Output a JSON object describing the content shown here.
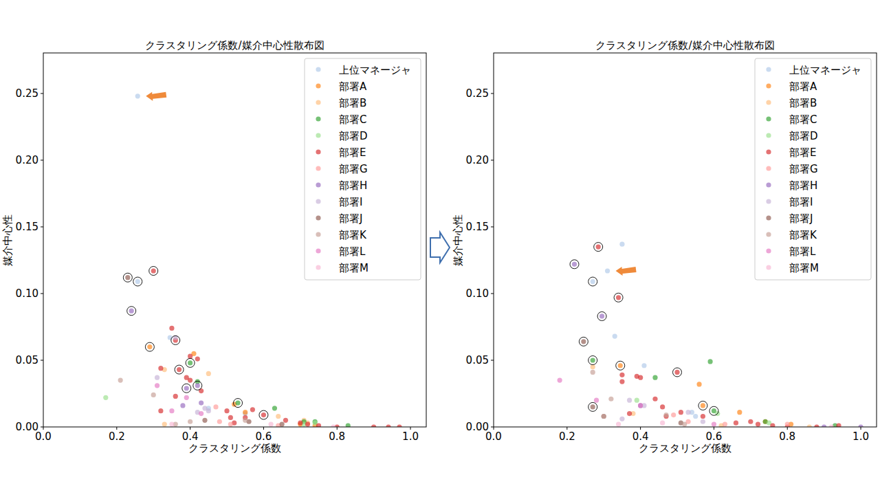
{
  "chart_data": [
    {
      "type": "scatter",
      "title": "クラスタリング係数/媒介中心性散布図",
      "x_label": "クラスタリング係数",
      "y_label": "媒介中心性",
      "xlim": [
        0,
        1.043
      ],
      "ylim": [
        0,
        0.2804
      ],
      "xticks": [
        {
          "value": 0,
          "label": "0.0"
        },
        {
          "value": 0.2,
          "label": "0.2"
        },
        {
          "value": 0.4,
          "label": "0.4"
        },
        {
          "value": 0.6,
          "label": "0.6"
        },
        {
          "value": 0.8,
          "label": "0.8"
        },
        {
          "value": 1,
          "label": "1.0"
        }
      ],
      "yticks": [
        {
          "value": 0,
          "label": "0.00"
        },
        {
          "value": 0.05,
          "label": "0.05"
        },
        {
          "value": 0.1,
          "label": "0.10"
        },
        {
          "value": 0.15,
          "label": "0.15"
        },
        {
          "value": 0.2,
          "label": "0.20"
        },
        {
          "value": 0.25,
          "label": "0.25"
        }
      ],
      "legend": "upper right",
      "series": [
        {
          "name": "上位マネージャ",
          "color": "#aec7e8",
          "marker": "circle",
          "x": [
            0.257,
            0.257,
            0.345,
            0.45,
            0.55
          ],
          "values": [
            0.248,
            0.109,
            0.067,
            0.014,
            0.01
          ]
        },
        {
          "name": "部署A",
          "color": "#ff7f0e",
          "marker": "circle",
          "x": [
            0.29,
            0.41,
            0.52,
            0.55,
            0.7,
            0.74
          ],
          "values": [
            0.06,
            0.055,
            0.017,
            0.011,
            0.002,
            0.001
          ]
        },
        {
          "name": "部署B",
          "color": "#ffbb78",
          "marker": "circle",
          "x": [
            0.33,
            0.45,
            0.64,
            0.72,
            0.33,
            0.71
          ],
          "values": [
            0.043,
            0.04,
            0.008,
            0.003,
            0.002,
            0.005
          ]
        },
        {
          "name": "部署C",
          "color": "#2ca02c",
          "marker": "circle",
          "x": [
            0.4,
            0.42,
            0.53,
            0.63,
            0.74,
            0.83,
            0.71
          ],
          "values": [
            0.048,
            0.034,
            0.018,
            0.014,
            0.004,
            0.001,
            0.004
          ]
        },
        {
          "name": "部署D",
          "color": "#98df8a",
          "marker": "circle",
          "x": [
            0.17,
            0.74,
            0.71
          ],
          "values": [
            0.022,
            0.003,
            0.002
          ]
        },
        {
          "name": "部署E",
          "color": "#d62728",
          "marker": "circle",
          "x": [
            0.3,
            0.35,
            0.36,
            0.37,
            0.39,
            0.4,
            0.42,
            0.4,
            0.43,
            0.32,
            0.32,
            0.36,
            0.5,
            0.51,
            0.55,
            0.57,
            0.6,
            0.66,
            0.7,
            0.72,
            0.75,
            0.8,
            0.9,
            0.94,
            0.97,
            0.52
          ],
          "values": [
            0.117,
            0.074,
            0.065,
            0.043,
            0.037,
            0.053,
            0.051,
            0.035,
            0.027,
            0.044,
            0.012,
            0.023,
            0.012,
            0.007,
            0.007,
            0.013,
            0.009,
            0.005,
            0.003,
            0.002,
            0.001,
            0,
            0,
            0,
            0,
            0.003
          ]
        },
        {
          "name": "部署G",
          "color": "#ff9896",
          "marker": "circle",
          "x": [
            0.47,
            0.51,
            0.64,
            0.48
          ],
          "values": [
            0.015,
            0.002,
            0.001,
            0.004
          ]
        },
        {
          "name": "部署H",
          "color": "#9467bd",
          "marker": "circle",
          "x": [
            0.24,
            0.39,
            0.42,
            0.43,
            0.38
          ],
          "values": [
            0.087,
            0.029,
            0.031,
            0.018,
            0.016
          ]
        },
        {
          "name": "部署I",
          "color": "#c5b0d5",
          "marker": "circle",
          "x": [
            0.36,
            0.31,
            0.44,
            0.45,
            0.42
          ],
          "values": [
            0.067,
            0.037,
            0.014,
            0.012,
            0.011
          ]
        },
        {
          "name": "部署J",
          "color": "#8c564b",
          "marker": "circle",
          "x": [
            0.23,
            0.44,
            0.56,
            0.65
          ],
          "values": [
            0.112,
            0.005,
            0.004,
            0.002
          ]
        },
        {
          "name": "部署K",
          "color": "#c49c94",
          "marker": "circle",
          "x": [
            0.21,
            0.3,
            0.4,
            0.55,
            0.36
          ],
          "values": [
            0.035,
            0.024,
            0.004,
            0.005,
            0.002
          ]
        },
        {
          "name": "部署L",
          "color": "#e377c2",
          "marker": "circle",
          "x": [
            0.31,
            0.35,
            0.43,
            0.39
          ],
          "values": [
            0.031,
            0.012,
            0.01,
            0.022
          ]
        },
        {
          "name": "部署M",
          "color": "#f7b6d2",
          "marker": "circle",
          "x": [
            0.35,
            0.62,
            0.79
          ],
          "values": [
            0.002,
            0.002,
            0
          ]
        },
        {
          "color": "#000000",
          "marker": "ring",
          "x": [
            0.23,
            0.257,
            0.3,
            0.24,
            0.29,
            0.36,
            0.37,
            0.4,
            0.39,
            0.42,
            0.53,
            0.6
          ],
          "values": [
            0.112,
            0.109,
            0.117,
            0.087,
            0.06,
            0.065,
            0.043,
            0.048,
            0.029,
            0.031,
            0.018,
            0.009
          ]
        }
      ]
    },
    {
      "type": "scatter",
      "title": "クラスタリング係数/媒介中心性散布図",
      "x_label": "クラスタリング係数",
      "y_label": "媒介中心性",
      "xlim": [
        0,
        1.043
      ],
      "ylim": [
        0,
        0.2804
      ],
      "xticks": [
        {
          "value": 0,
          "label": "0.0"
        },
        {
          "value": 0.2,
          "label": "0.2"
        },
        {
          "value": 0.4,
          "label": "0.4"
        },
        {
          "value": 0.6,
          "label": "0.6"
        },
        {
          "value": 0.8,
          "label": "0.8"
        },
        {
          "value": 1,
          "label": "1.0"
        }
      ],
      "yticks": [
        {
          "value": 0,
          "label": "0.00"
        },
        {
          "value": 0.05,
          "label": "0.05"
        },
        {
          "value": 0.1,
          "label": "0.10"
        },
        {
          "value": 0.15,
          "label": "0.15"
        },
        {
          "value": 0.2,
          "label": "0.20"
        },
        {
          "value": 0.25,
          "label": "0.25"
        }
      ],
      "legend": "upper right",
      "series": [
        {
          "name": "上位マネージャ",
          "color": "#aec7e8",
          "marker": "circle",
          "x": [
            0.35,
            0.31,
            0.27,
            0.33,
            0.41,
            0.55,
            0.54
          ],
          "values": [
            0.137,
            0.117,
            0.109,
            0.068,
            0.046,
            0.008,
            0.011
          ]
        },
        {
          "name": "部署A",
          "color": "#ff7f0e",
          "marker": "circle",
          "x": [
            0.345,
            0.57,
            0.56,
            0.67,
            0.74,
            0.81
          ],
          "values": [
            0.046,
            0.016,
            0.032,
            0.011,
            0.004,
            0.002
          ]
        },
        {
          "name": "部署B",
          "color": "#ffbb78",
          "marker": "circle",
          "x": [
            0.27,
            0.38,
            0.62,
            0.86
          ],
          "values": [
            0.045,
            0.01,
            0.001,
            0
          ]
        },
        {
          "name": "部署C",
          "color": "#2ca02c",
          "marker": "circle",
          "x": [
            0.27,
            0.44,
            0.59,
            0.6,
            0.74,
            0.93
          ],
          "values": [
            0.05,
            0.037,
            0.049,
            0.012,
            0.004,
            0.001
          ]
        },
        {
          "name": "部署D",
          "color": "#98df8a",
          "marker": "circle",
          "x": [
            0.39,
            0.75,
            0.61
          ],
          "values": [
            0.02,
            0.003,
            0.01
          ]
        },
        {
          "name": "部署E",
          "color": "#d62728",
          "marker": "circle",
          "x": [
            0.285,
            0.34,
            0.5,
            0.35,
            0.35,
            0.39,
            0.4,
            0.46,
            0.44,
            0.47,
            0.51,
            0.57,
            0.66,
            0.7,
            0.72,
            0.76,
            0.8,
            0.88,
            0.94,
            0.37
          ],
          "values": [
            0.135,
            0.097,
            0.041,
            0.039,
            0.034,
            0.038,
            0.037,
            0.015,
            0.021,
            0.008,
            0.011,
            0.008,
            0.003,
            0.004,
            0.002,
            0.001,
            0,
            0,
            0.001,
            0.01
          ]
        },
        {
          "name": "部署G",
          "color": "#ff9896",
          "marker": "circle",
          "x": [
            0.53,
            0.49,
            0.63,
            0.8
          ],
          "values": [
            0.004,
            0.009,
            0.002,
            0.002
          ]
        },
        {
          "name": "部署H",
          "color": "#9467bd",
          "marker": "circle",
          "x": [
            0.22,
            0.295,
            0.4,
            0.9,
            1
          ],
          "values": [
            0.122,
            0.083,
            0.016,
            0,
            0
          ]
        },
        {
          "name": "部署I",
          "color": "#c5b0d5",
          "marker": "circle",
          "x": [
            0.37,
            0.41,
            0.53,
            0.57,
            0.35
          ],
          "values": [
            0.02,
            0.016,
            0.011,
            0.004,
            0.006
          ]
        },
        {
          "name": "部署J",
          "color": "#8c564b",
          "marker": "circle",
          "x": [
            0.245,
            0.27,
            0.3,
            0.51
          ],
          "values": [
            0.064,
            0.015,
            0.008,
            0.003
          ]
        },
        {
          "name": "部署K",
          "color": "#c49c94",
          "marker": "circle",
          "x": [
            0.27,
            0.3,
            0.32,
            0.47,
            0.52
          ],
          "values": [
            0.041,
            0.008,
            0.021,
            0.009,
            0.002
          ]
        },
        {
          "name": "部署L",
          "color": "#e377c2",
          "marker": "circle",
          "x": [
            0.18,
            0.28,
            0.4,
            0.6
          ],
          "values": [
            0.035,
            0.02,
            0.016,
            0.002
          ]
        },
        {
          "name": "部署M",
          "color": "#f7b6d2",
          "marker": "circle",
          "x": [
            0.34,
            0.46,
            0.92
          ],
          "values": [
            0.002,
            0.003,
            0
          ]
        },
        {
          "color": "#000000",
          "marker": "ring",
          "x": [
            0.285,
            0.22,
            0.27,
            0.34,
            0.295,
            0.245,
            0.27,
            0.345,
            0.5,
            0.27,
            0.57,
            0.6
          ],
          "values": [
            0.135,
            0.122,
            0.109,
            0.097,
            0.083,
            0.064,
            0.05,
            0.046,
            0.041,
            0.015,
            0.016,
            0.012
          ]
        }
      ]
    }
  ]
}
